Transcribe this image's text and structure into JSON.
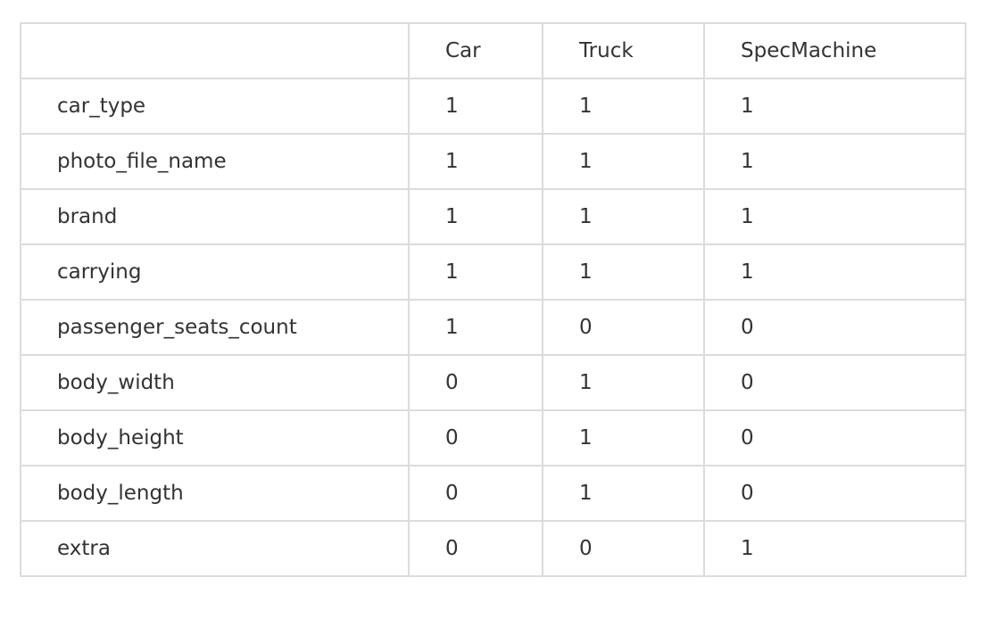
{
  "table": {
    "headers": [
      "",
      "Car",
      "Truck",
      "SpecMachine"
    ],
    "rows": [
      [
        "car_type",
        "1",
        "1",
        "1"
      ],
      [
        "photo_file_name",
        "1",
        "1",
        "1"
      ],
      [
        "brand",
        "1",
        "1",
        "1"
      ],
      [
        "carrying",
        "1",
        "1",
        "1"
      ],
      [
        "passenger_seats_count",
        "1",
        "0",
        "0"
      ],
      [
        "body_width",
        "0",
        "1",
        "0"
      ],
      [
        "body_height",
        "0",
        "1",
        "0"
      ],
      [
        "body_length",
        "0",
        "1",
        "0"
      ],
      [
        "extra",
        "0",
        "0",
        "1"
      ]
    ]
  }
}
